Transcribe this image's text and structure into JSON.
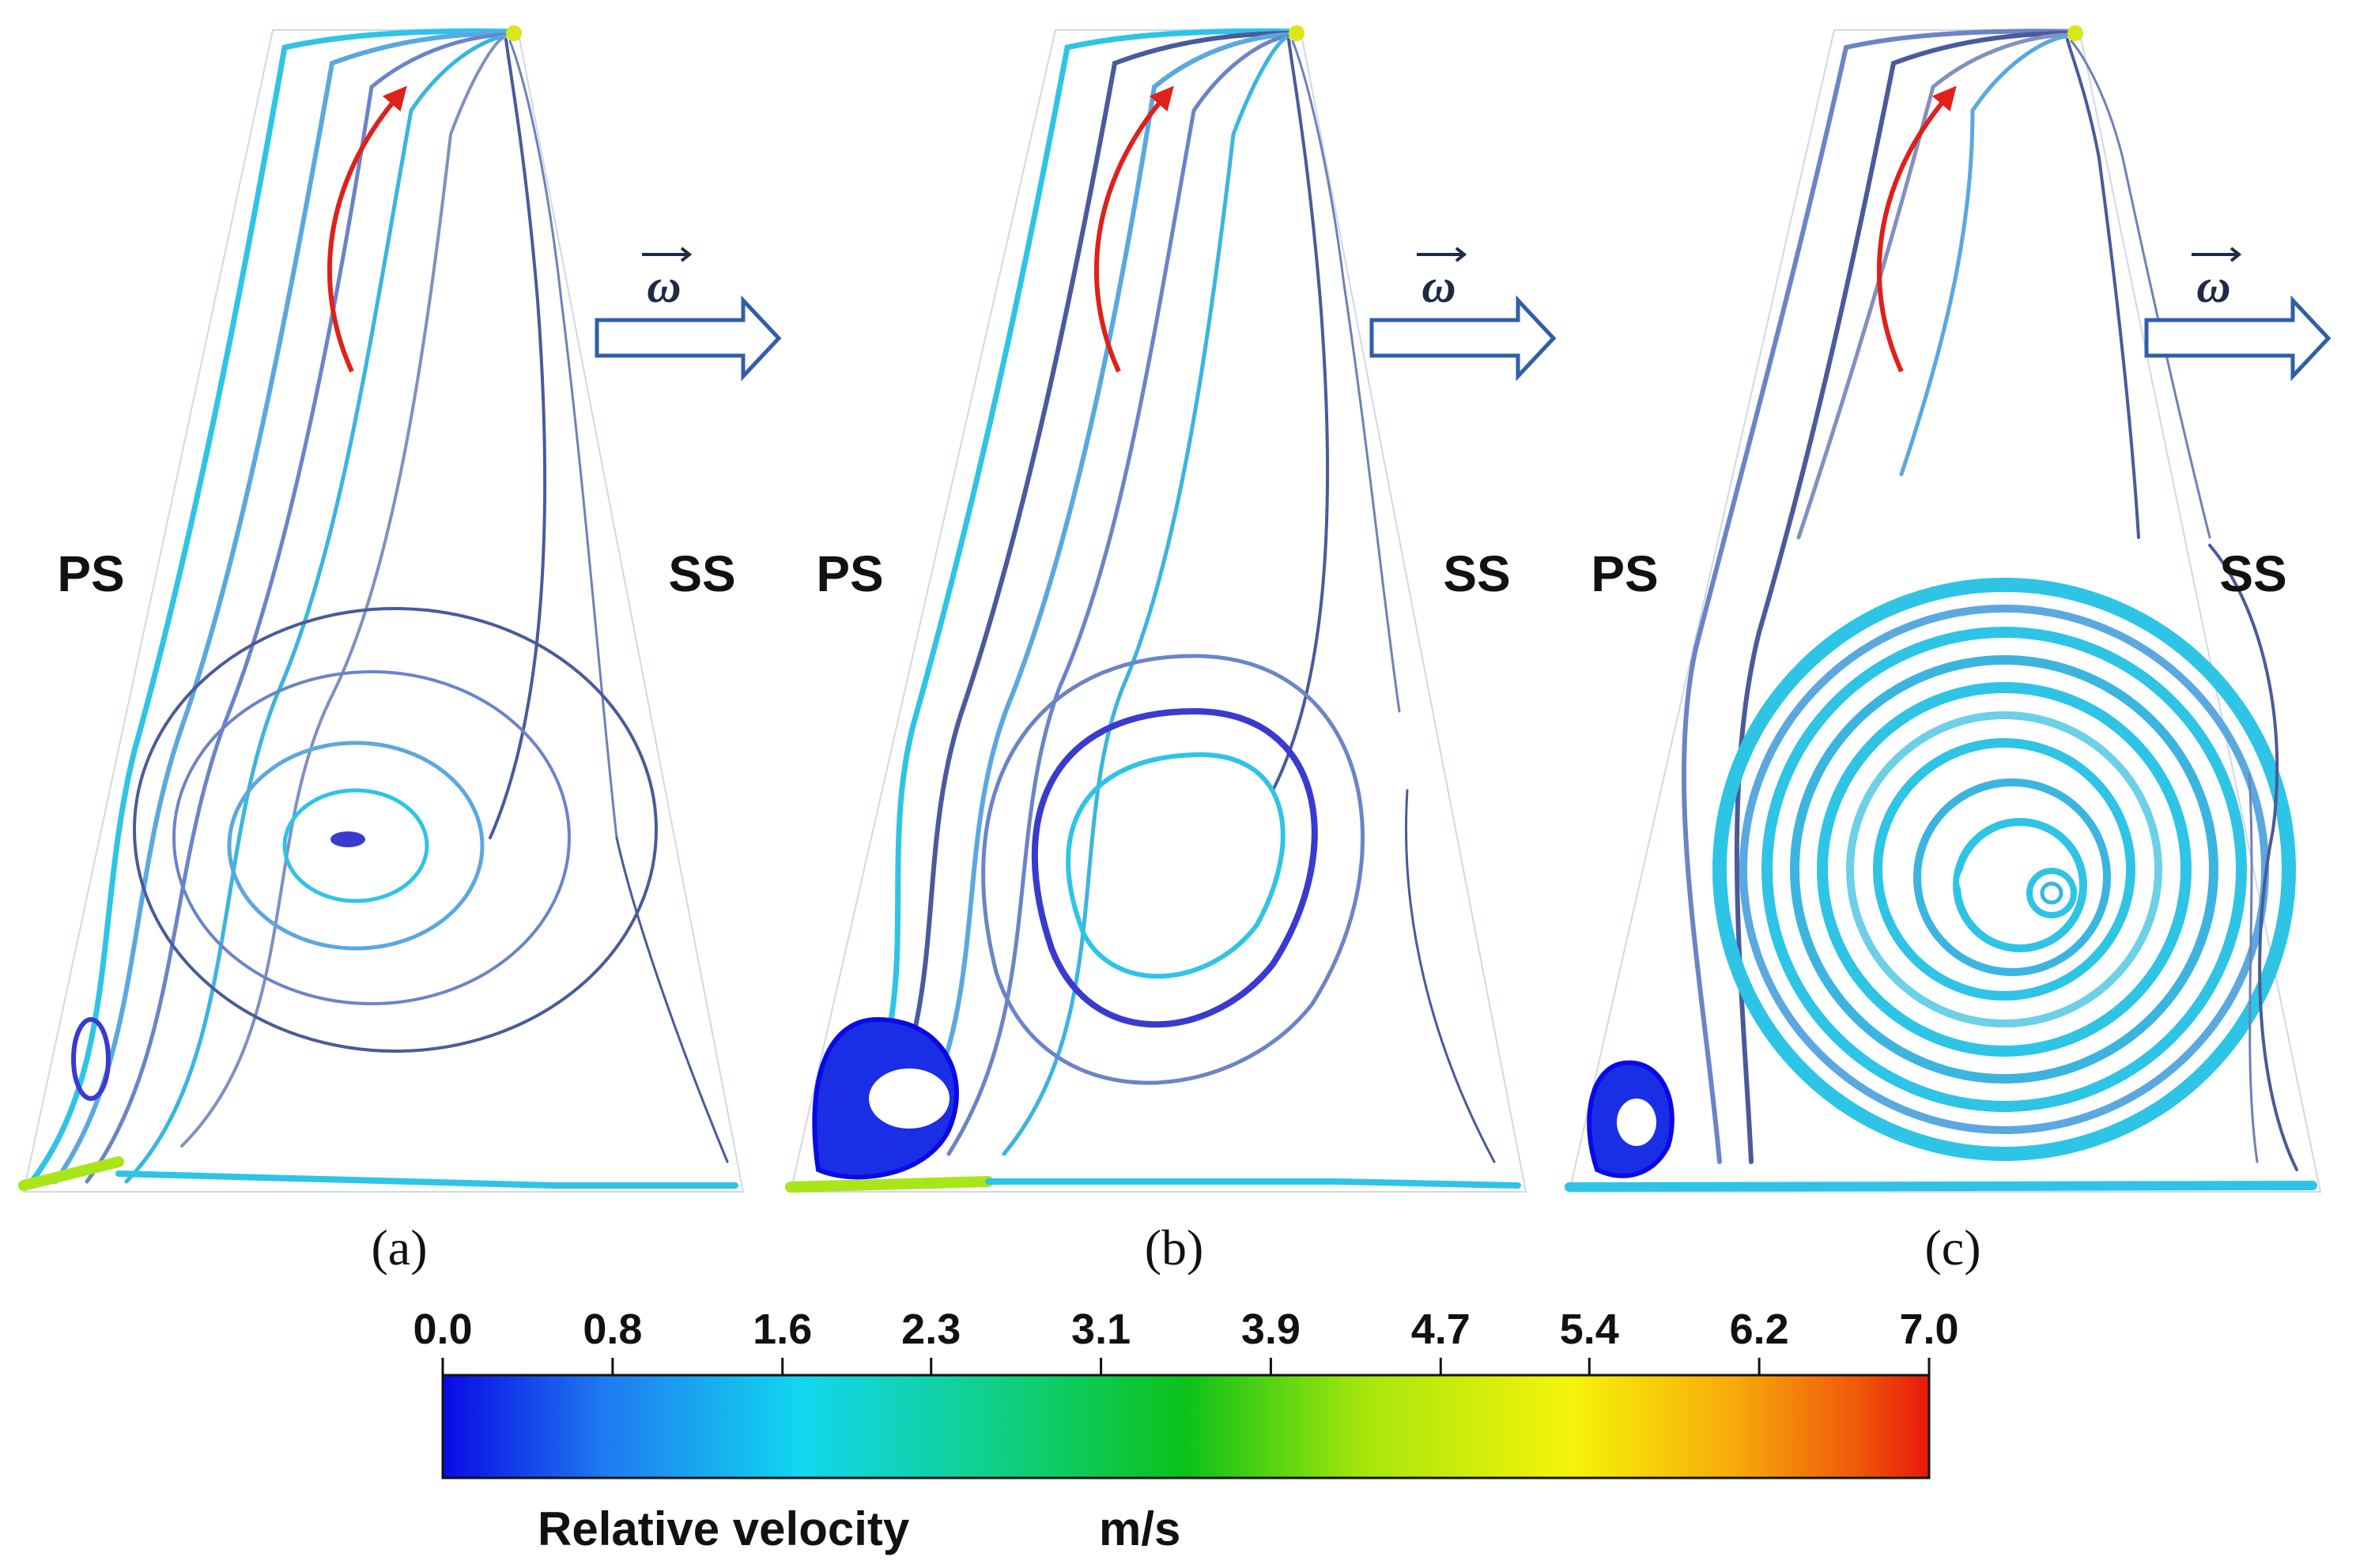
{
  "panels": [
    {
      "id": "a",
      "caption": "(a)",
      "left_label": "PS",
      "right_label": "SS",
      "rotation_symbol": "ω",
      "vortex": "small"
    },
    {
      "id": "b",
      "caption": "(b)",
      "left_label": "PS",
      "right_label": "SS",
      "rotation_symbol": "ω",
      "vortex": "medium"
    },
    {
      "id": "c",
      "caption": "(c)",
      "left_label": "PS",
      "right_label": "SS",
      "rotation_symbol": "ω",
      "vortex": "large"
    }
  ],
  "colorbar": {
    "title": "Relative velocity",
    "unit": "m/s",
    "min": 0.0,
    "max": 7.0,
    "ticks": [
      "0.0",
      "0.8",
      "1.6",
      "2.3",
      "3.1",
      "3.9",
      "4.7",
      "5.4",
      "6.2",
      "7.0"
    ],
    "colors": [
      "#0a0ae6",
      "#1f7bf0",
      "#12d6f0",
      "#10d08a",
      "#0cc21a",
      "#a6e60c",
      "#f6f40a",
      "#f7a90a",
      "#f05a0a",
      "#e6190a"
    ]
  },
  "colors": {
    "flow_arrow": "#e0201a",
    "rotation_arrow": "#2f5fa8",
    "stream_dark": "#4a5a9a",
    "stream_light": "#2ec4e6"
  }
}
